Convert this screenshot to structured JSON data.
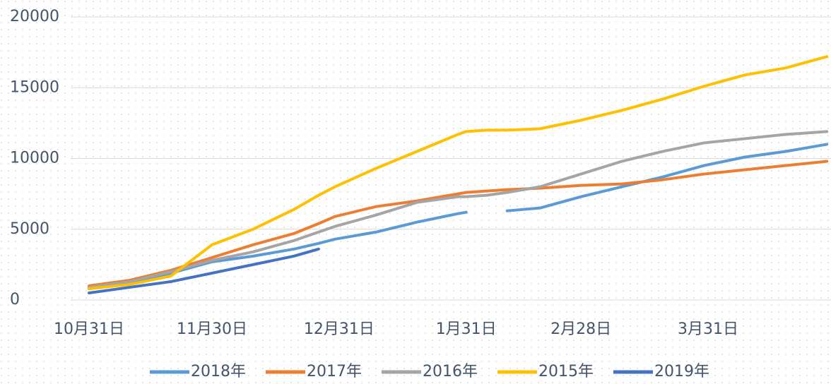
{
  "chart_data": {
    "type": "line",
    "x": [
      0,
      10,
      20,
      30,
      40,
      50,
      56,
      60,
      70,
      80,
      90,
      92,
      97,
      102,
      110,
      120,
      130,
      140,
      150,
      160,
      170,
      180
    ],
    "xlim": [
      0,
      181
    ],
    "xticks": [
      {
        "value": 0,
        "label": "10月31日"
      },
      {
        "value": 30,
        "label": "11月30日"
      },
      {
        "value": 61,
        "label": "12月31日"
      },
      {
        "value": 92,
        "label": "1月31日"
      },
      {
        "value": 120,
        "label": "2月28日"
      },
      {
        "value": 151,
        "label": "3月31日"
      }
    ],
    "ylim": [
      0,
      20000
    ],
    "yticks": [
      0,
      5000,
      10000,
      15000,
      20000
    ],
    "grid": true,
    "legend": "bottom",
    "series": [
      {
        "name": "2018年",
        "color": "#5b9bd5",
        "values": [
          800,
          1200,
          1900,
          2700,
          3100,
          3600,
          4000,
          4300,
          4800,
          5500,
          6100,
          6200,
          null,
          6300,
          6500,
          7300,
          8000,
          8700,
          9500,
          10100,
          10500,
          11000
        ]
      },
      {
        "name": "2017年",
        "color": "#ed7d31",
        "values": [
          1000,
          1400,
          2100,
          3000,
          3900,
          4700,
          5400,
          5900,
          6600,
          7000,
          7500,
          7600,
          7700,
          7800,
          7900,
          8100,
          8200,
          8500,
          8900,
          9200,
          9500,
          9800
        ]
      },
      {
        "name": "2016年",
        "color": "#a5a5a5",
        "values": [
          900,
          1300,
          2000,
          2800,
          3400,
          4200,
          4800,
          5200,
          6000,
          6900,
          7300,
          7300,
          7400,
          7600,
          8000,
          8900,
          9800,
          10500,
          11100,
          11400,
          11700,
          11900
        ]
      },
      {
        "name": "2015年",
        "color": "#ffc000",
        "values": [
          800,
          1100,
          1700,
          3900,
          5000,
          6400,
          7400,
          8000,
          9300,
          10500,
          11700,
          11900,
          12000,
          12000,
          12100,
          12700,
          13400,
          14200,
          15100,
          15900,
          16400,
          17200
        ]
      },
      {
        "name": "2019年",
        "color": "#4472c4",
        "values": [
          500,
          900,
          1300,
          1900,
          2500,
          3100,
          3600,
          null,
          null,
          null,
          null,
          null,
          null,
          null,
          null,
          null,
          null,
          null,
          null,
          null,
          null,
          null
        ]
      }
    ]
  }
}
